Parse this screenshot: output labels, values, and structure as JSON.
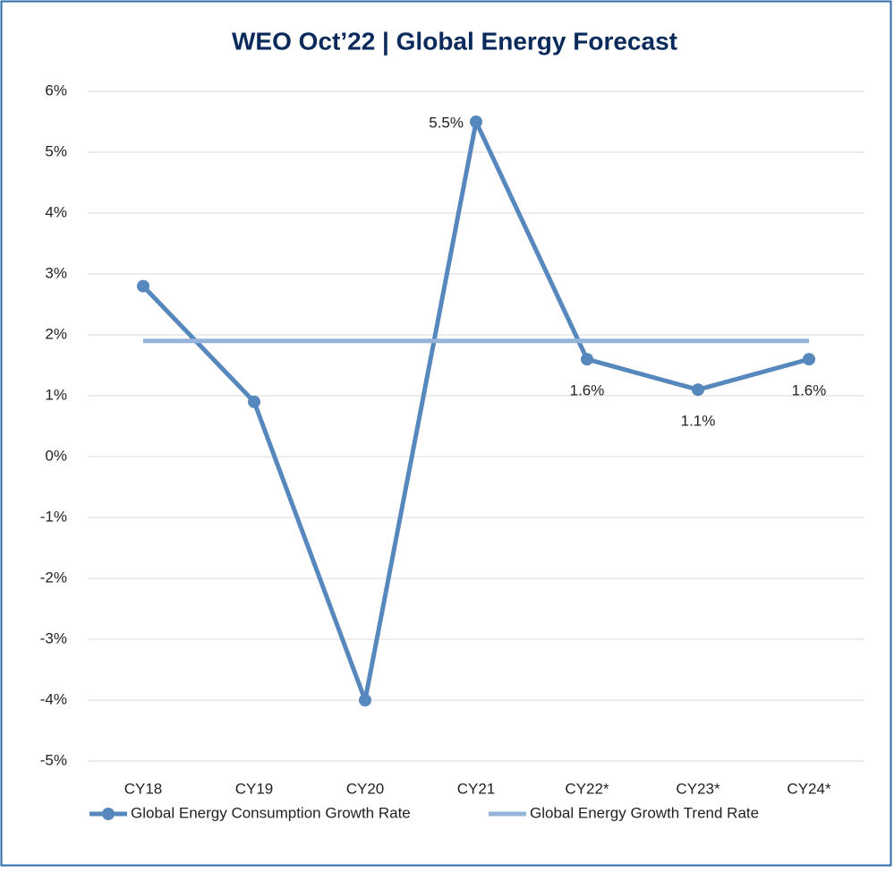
{
  "chart_data": {
    "type": "line",
    "title": "WEO Oct’22 | Global Energy Forecast",
    "categories": [
      "CY18",
      "CY19",
      "CY20",
      "CY21",
      "CY22*",
      "CY23*",
      "CY24*"
    ],
    "series": [
      {
        "name": "Global Energy Consumption Growth Rate",
        "color": "#5687bd",
        "values": [
          2.8,
          0.9,
          -4.0,
          5.5,
          1.6,
          1.1,
          1.6
        ],
        "value_labels": [
          null,
          null,
          null,
          "5.5%",
          "1.6%",
          "1.1%",
          "1.6%"
        ],
        "markers": true
      },
      {
        "name": "Global Energy Growth Trend Rate",
        "color": "#95b4da",
        "values": [
          1.9,
          1.9,
          1.9,
          1.9,
          1.9,
          1.9,
          1.9
        ],
        "markers": false
      }
    ],
    "ylim": [
      -5,
      6
    ],
    "yticks": [
      {
        "value": -5,
        "label": "-5%"
      },
      {
        "value": -4,
        "label": "-4%"
      },
      {
        "value": -3,
        "label": "-3%"
      },
      {
        "value": -2,
        "label": "-2%"
      },
      {
        "value": -1,
        "label": "-1%"
      },
      {
        "value": 0,
        "label": "0%"
      },
      {
        "value": 1,
        "label": "1%"
      },
      {
        "value": 2,
        "label": "2%"
      },
      {
        "value": 3,
        "label": "3%"
      },
      {
        "value": 4,
        "label": "4%"
      },
      {
        "value": 5,
        "label": "5%"
      },
      {
        "value": 6,
        "label": "6%"
      }
    ],
    "grid": true,
    "legend": "bottom"
  }
}
